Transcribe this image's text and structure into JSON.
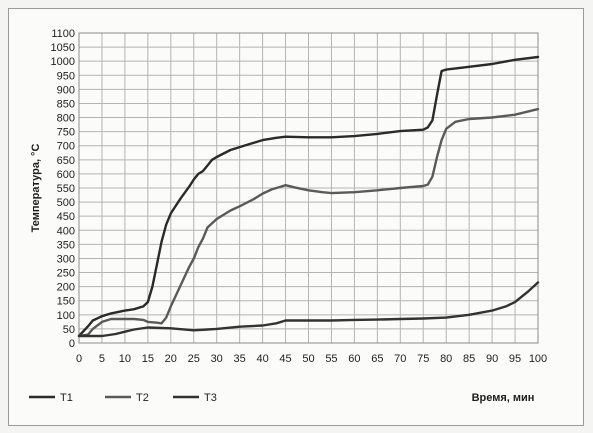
{
  "chart_data": {
    "type": "line",
    "title": "",
    "xlabel": "Время, мин",
    "ylabel": "Температура, °С",
    "xlim": [
      0,
      100
    ],
    "ylim": [
      0,
      1100
    ],
    "x_ticks": [
      0,
      5,
      10,
      15,
      20,
      25,
      30,
      35,
      40,
      45,
      50,
      55,
      60,
      65,
      70,
      75,
      80,
      85,
      90,
      95,
      100
    ],
    "y_ticks": [
      0,
      50,
      100,
      150,
      200,
      250,
      300,
      350,
      400,
      450,
      500,
      550,
      600,
      650,
      700,
      750,
      800,
      850,
      900,
      950,
      1000,
      1050,
      1100
    ],
    "grid": true,
    "legend_position": "bottom-left",
    "series": [
      {
        "name": "T1",
        "color": "#2a2a2a",
        "points": [
          [
            0,
            25
          ],
          [
            2,
            60
          ],
          [
            3,
            80
          ],
          [
            5,
            95
          ],
          [
            7,
            105
          ],
          [
            10,
            115
          ],
          [
            12,
            120
          ],
          [
            14,
            130
          ],
          [
            15,
            145
          ],
          [
            16,
            200
          ],
          [
            17,
            280
          ],
          [
            18,
            360
          ],
          [
            19,
            420
          ],
          [
            20,
            460
          ],
          [
            22,
            510
          ],
          [
            24,
            555
          ],
          [
            25,
            580
          ],
          [
            26,
            600
          ],
          [
            27,
            610
          ],
          [
            28,
            630
          ],
          [
            29,
            650
          ],
          [
            30,
            660
          ],
          [
            33,
            685
          ],
          [
            35,
            695
          ],
          [
            38,
            710
          ],
          [
            40,
            720
          ],
          [
            43,
            728
          ],
          [
            45,
            732
          ],
          [
            50,
            730
          ],
          [
            55,
            730
          ],
          [
            60,
            734
          ],
          [
            65,
            742
          ],
          [
            70,
            752
          ],
          [
            75,
            757
          ],
          [
            76,
            765
          ],
          [
            77,
            790
          ],
          [
            78,
            880
          ],
          [
            79,
            965
          ],
          [
            80,
            970
          ],
          [
            85,
            980
          ],
          [
            90,
            990
          ],
          [
            95,
            1005
          ],
          [
            100,
            1015
          ]
        ]
      },
      {
        "name": "T2",
        "color": "#5a5a5a",
        "points": [
          [
            0,
            25
          ],
          [
            2,
            30
          ],
          [
            3,
            50
          ],
          [
            5,
            75
          ],
          [
            7,
            85
          ],
          [
            10,
            85
          ],
          [
            12,
            85
          ],
          [
            14,
            82
          ],
          [
            15,
            75
          ],
          [
            17,
            72
          ],
          [
            18,
            70
          ],
          [
            19,
            90
          ],
          [
            20,
            130
          ],
          [
            22,
            200
          ],
          [
            24,
            270
          ],
          [
            25,
            300
          ],
          [
            26,
            340
          ],
          [
            27,
            370
          ],
          [
            28,
            410
          ],
          [
            29,
            425
          ],
          [
            30,
            440
          ],
          [
            33,
            470
          ],
          [
            35,
            485
          ],
          [
            38,
            510
          ],
          [
            40,
            530
          ],
          [
            42,
            545
          ],
          [
            44,
            555
          ],
          [
            45,
            560
          ],
          [
            47,
            552
          ],
          [
            50,
            542
          ],
          [
            53,
            535
          ],
          [
            55,
            532
          ],
          [
            60,
            535
          ],
          [
            65,
            542
          ],
          [
            70,
            550
          ],
          [
            75,
            557
          ],
          [
            76,
            562
          ],
          [
            77,
            590
          ],
          [
            78,
            660
          ],
          [
            79,
            720
          ],
          [
            80,
            760
          ],
          [
            82,
            785
          ],
          [
            85,
            795
          ],
          [
            90,
            800
          ],
          [
            95,
            810
          ],
          [
            100,
            830
          ]
        ]
      },
      {
        "name": "T3",
        "color": "#333333",
        "points": [
          [
            0,
            25
          ],
          [
            3,
            25
          ],
          [
            5,
            25
          ],
          [
            8,
            32
          ],
          [
            10,
            40
          ],
          [
            12,
            48
          ],
          [
            15,
            55
          ],
          [
            20,
            52
          ],
          [
            25,
            45
          ],
          [
            28,
            48
          ],
          [
            30,
            50
          ],
          [
            35,
            58
          ],
          [
            40,
            62
          ],
          [
            43,
            70
          ],
          [
            45,
            80
          ],
          [
            50,
            80
          ],
          [
            55,
            80
          ],
          [
            60,
            82
          ],
          [
            65,
            83
          ],
          [
            70,
            85
          ],
          [
            75,
            87
          ],
          [
            80,
            90
          ],
          [
            85,
            100
          ],
          [
            90,
            115
          ],
          [
            93,
            130
          ],
          [
            95,
            145
          ],
          [
            98,
            185
          ],
          [
            100,
            215
          ]
        ]
      }
    ]
  }
}
